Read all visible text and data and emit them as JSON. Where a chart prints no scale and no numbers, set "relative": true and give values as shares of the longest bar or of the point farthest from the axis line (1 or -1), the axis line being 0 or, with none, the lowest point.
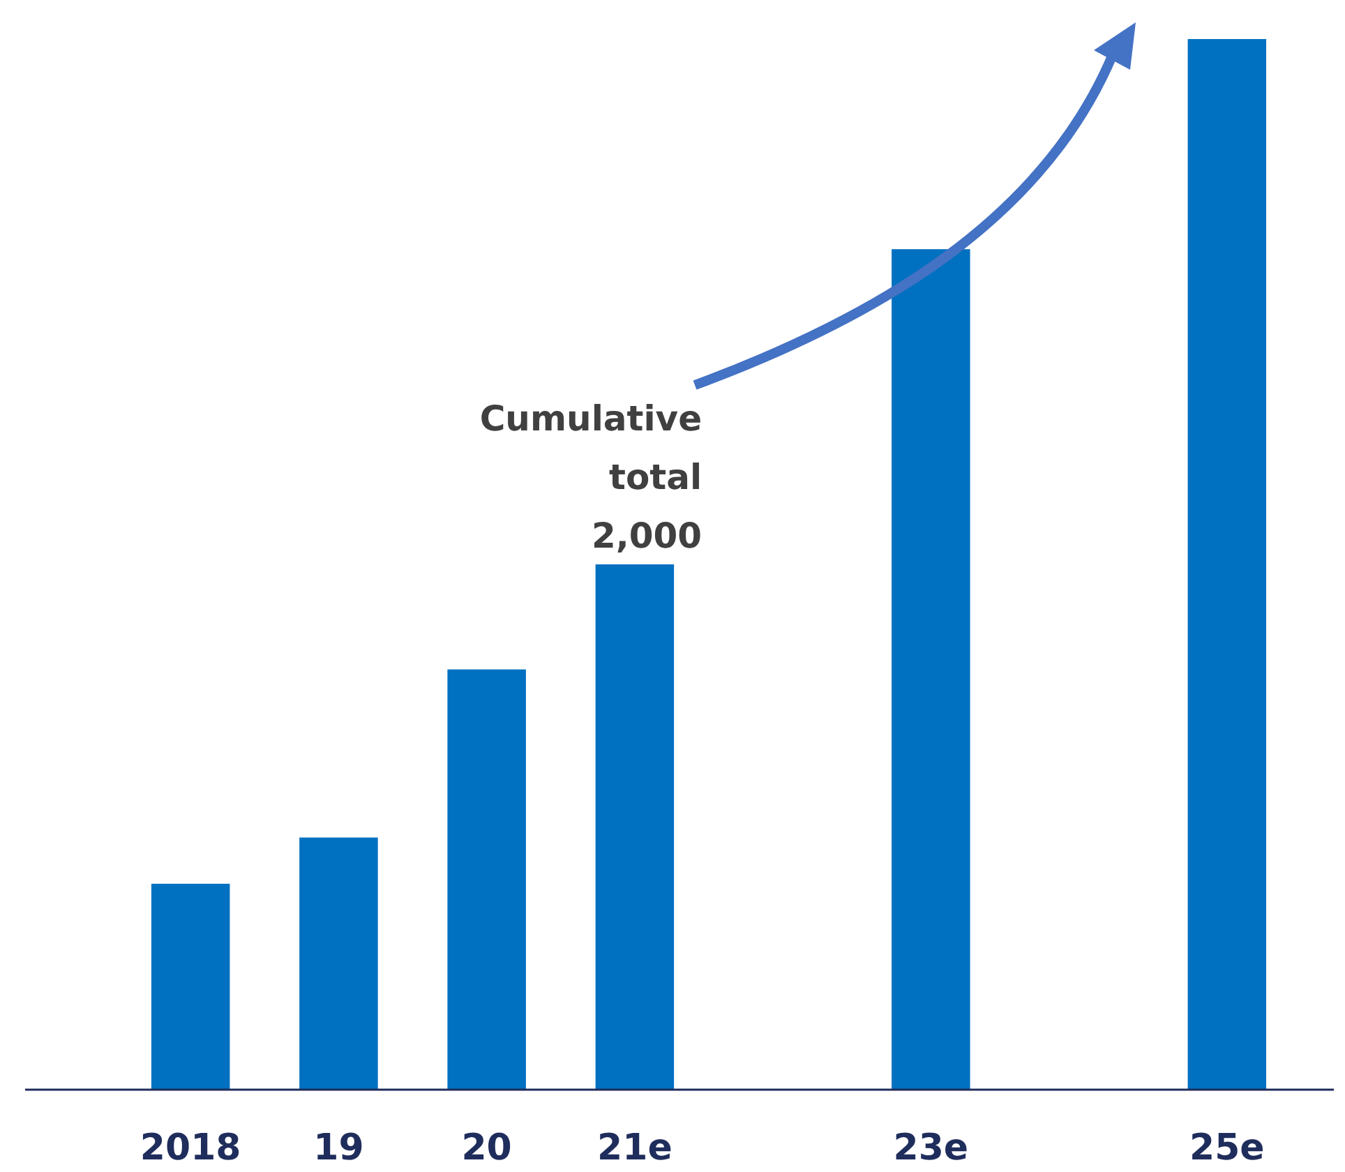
{
  "chart_data": {
    "type": "bar",
    "relative": true,
    "categories": [
      "2018",
      "19",
      "20",
      "21e",
      null,
      "23e",
      null,
      "25e"
    ],
    "values": [
      0.196,
      0.24,
      0.4,
      0.5,
      null,
      0.8,
      null,
      1
    ],
    "color": "#0070c0",
    "annotations": [
      {
        "text": "Cumulative total 2,000",
        "x": "21e",
        "y": 0.5
      }
    ]
  }
}
